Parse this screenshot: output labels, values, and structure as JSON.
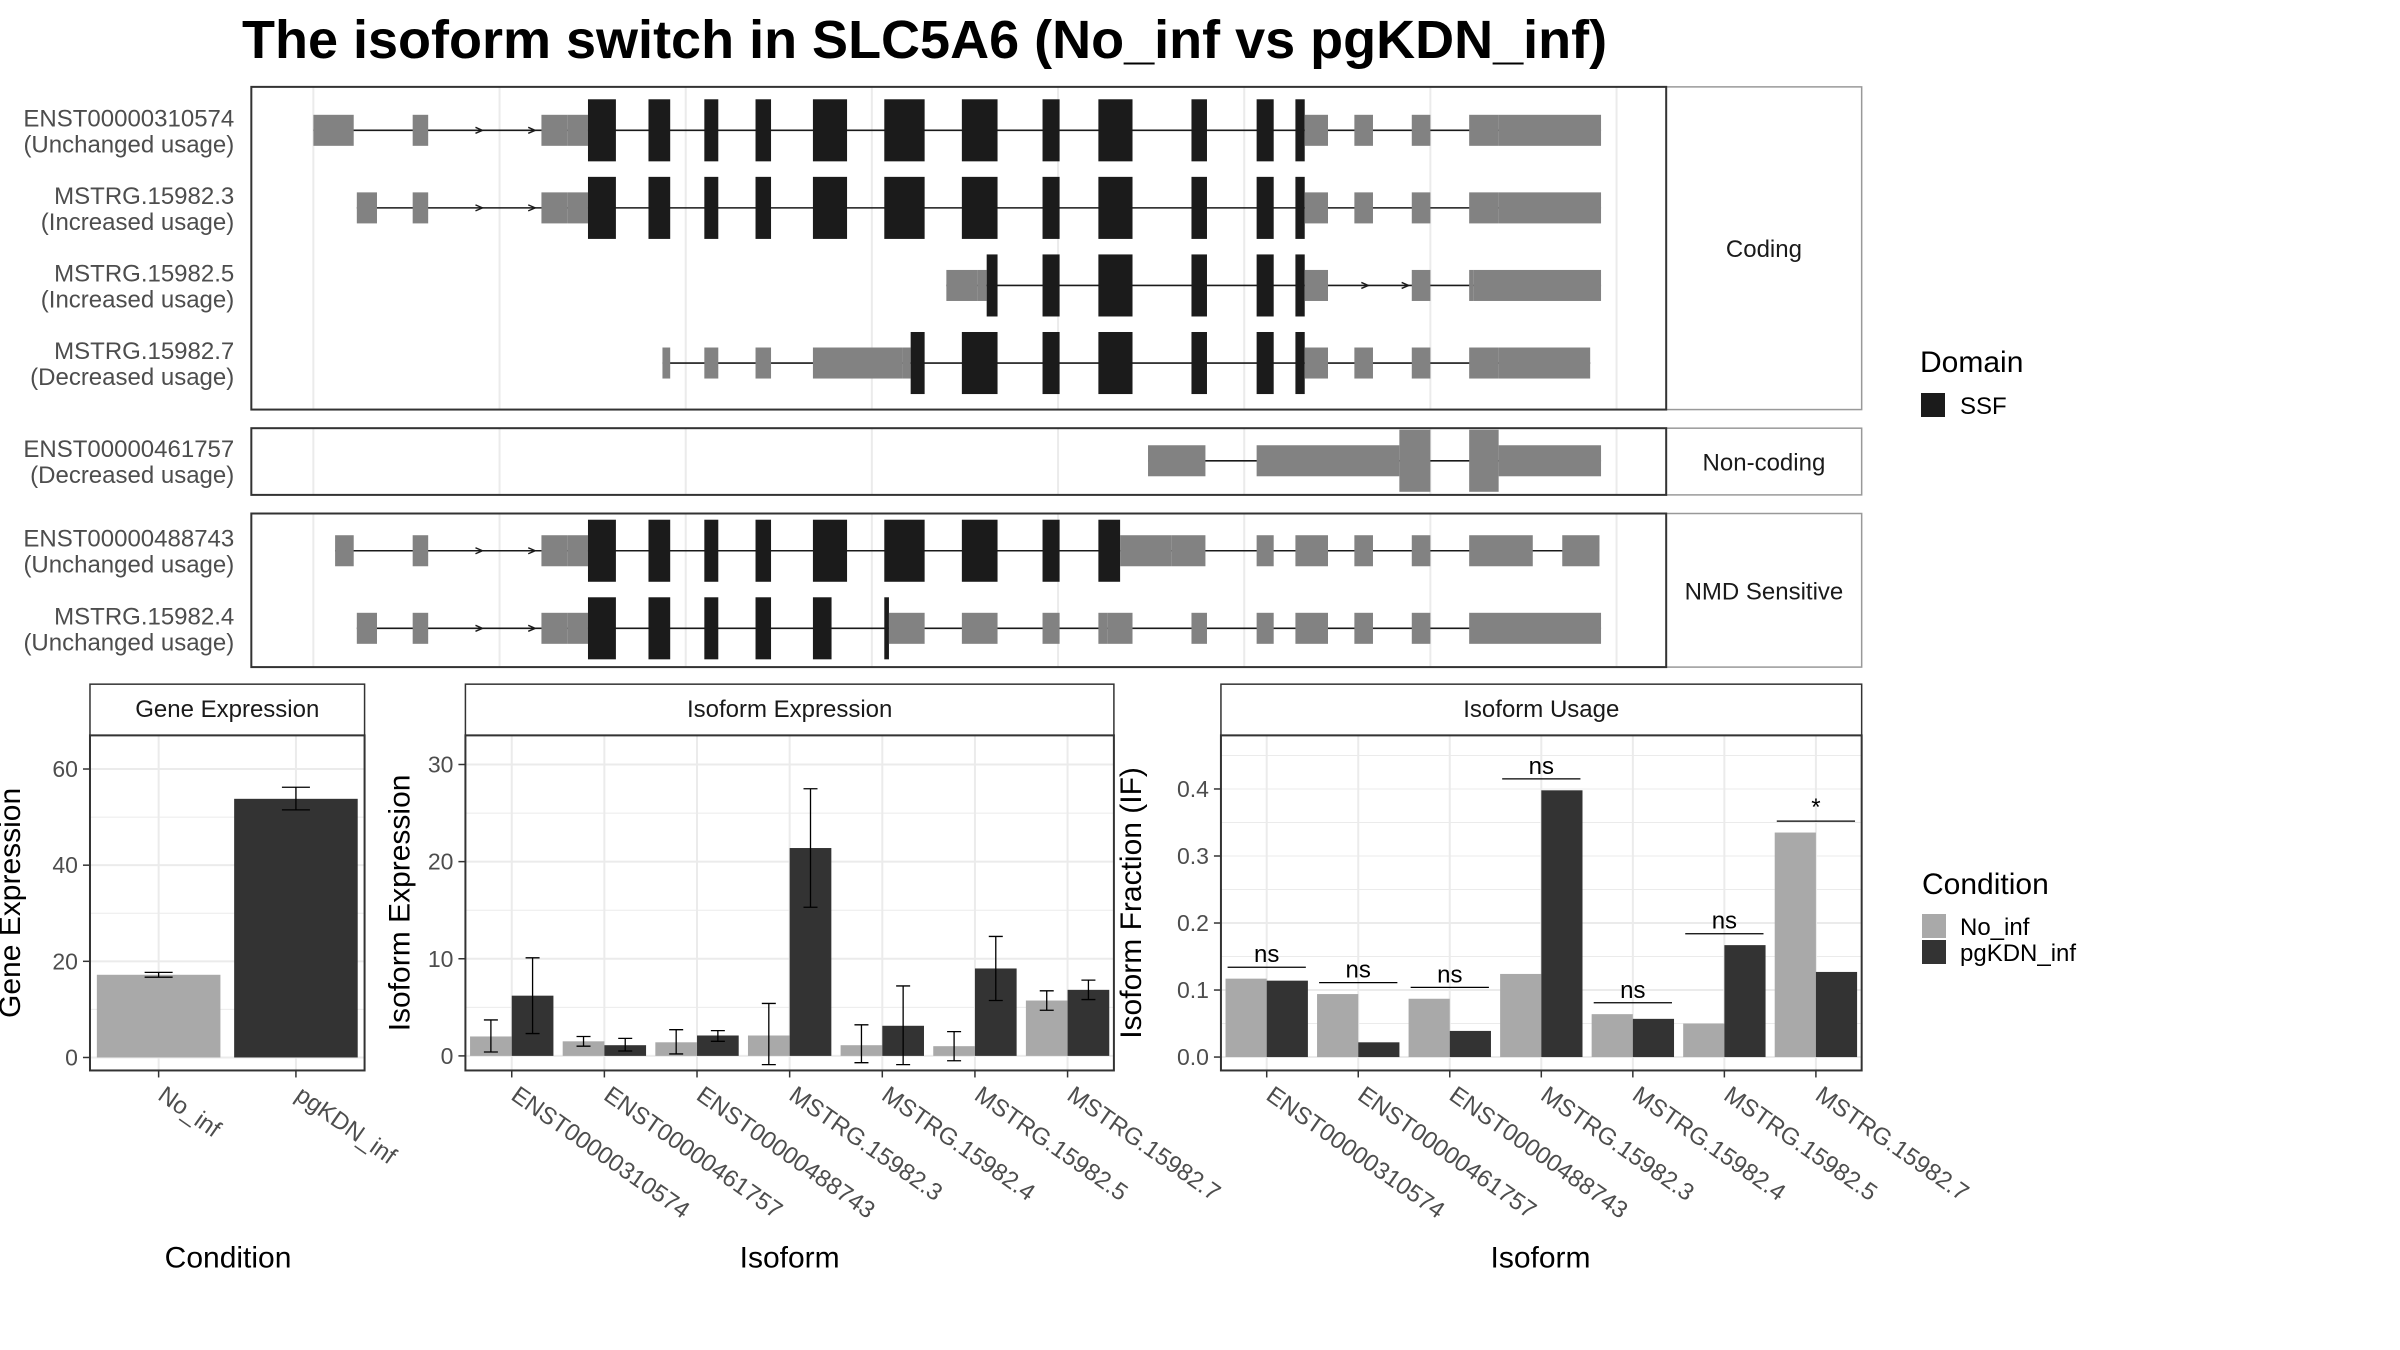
{
  "title": "The isoform switch in SLC5A6 (No_inf vs pgKDN_inf)",
  "colors": {
    "exon_noncoding": "#828282",
    "exon_domain": "#1b1b1b",
    "condition_a": "#a9a9a9",
    "condition_b": "#333333",
    "strip_bg": "#ffffff",
    "panel_border": "#333333",
    "grid": "#ebebeb"
  },
  "chart_data": [
    {
      "type": "gene-structure",
      "groups": [
        {
          "label": "Coding",
          "transcripts": [
            {
              "name": "ENST00000310574",
              "status": "(Unchanged usage)",
              "segments": [
                [
                  202,
                  228,
                  0
                ],
                [
                  266,
                  276,
                  0
                ],
                [
                  349,
                  366,
                  0
                ],
                [
                  366,
                  379,
                  0
                ],
                [
                  379,
                  397,
                  1
                ],
                [
                  418,
                  432,
                  1
                ],
                [
                  454,
                  463,
                  1
                ],
                [
                  487,
                  497,
                  1
                ],
                [
                  524,
                  546,
                  1
                ],
                [
                  570,
                  596,
                  1
                ],
                [
                  620,
                  643,
                  1
                ],
                [
                  672,
                  683,
                  1
                ],
                [
                  708,
                  730,
                  1
                ],
                [
                  768,
                  778,
                  1
                ],
                [
                  810,
                  821,
                  1
                ],
                [
                  835,
                  841,
                  1
                ],
                [
                  841,
                  856,
                  0
                ],
                [
                  873,
                  885,
                  0
                ],
                [
                  910,
                  922,
                  0
                ],
                [
                  947,
                  966,
                  0
                ],
                [
                  966,
                  1032,
                  0
                ]
              ],
              "arrows": [
                311,
                345
              ]
            },
            {
              "name": "MSTRG.15982.3",
              "status": "(Increased usage)",
              "segments": [
                [
                  230,
                  243,
                  0
                ],
                [
                  266,
                  276,
                  0
                ],
                [
                  349,
                  366,
                  0
                ],
                [
                  366,
                  379,
                  0
                ],
                [
                  379,
                  397,
                  1
                ],
                [
                  418,
                  432,
                  1
                ],
                [
                  454,
                  463,
                  1
                ],
                [
                  487,
                  497,
                  1
                ],
                [
                  524,
                  546,
                  1
                ],
                [
                  570,
                  596,
                  1
                ],
                [
                  620,
                  643,
                  1
                ],
                [
                  672,
                  683,
                  1
                ],
                [
                  708,
                  730,
                  1
                ],
                [
                  768,
                  778,
                  1
                ],
                [
                  810,
                  821,
                  1
                ],
                [
                  835,
                  841,
                  1
                ],
                [
                  841,
                  856,
                  0
                ],
                [
                  873,
                  885,
                  0
                ],
                [
                  910,
                  922,
                  0
                ],
                [
                  947,
                  966,
                  0
                ],
                [
                  966,
                  1032,
                  0
                ]
              ],
              "arrows": [
                311,
                345
              ]
            },
            {
              "name": "MSTRG.15982.5",
              "status": "(Increased usage)",
              "segments": [
                [
                  610,
                  630,
                  0
                ],
                [
                  630,
                  636,
                  0
                ],
                [
                  636,
                  643,
                  1
                ],
                [
                  672,
                  683,
                  1
                ],
                [
                  708,
                  730,
                  1
                ],
                [
                  768,
                  778,
                  1
                ],
                [
                  810,
                  821,
                  1
                ],
                [
                  835,
                  841,
                  1
                ],
                [
                  841,
                  856,
                  0
                ],
                [
                  910,
                  922,
                  0
                ],
                [
                  947,
                  950,
                  0
                ],
                [
                  950,
                  1032,
                  0
                ]
              ],
              "arrows": [
                882,
                908
              ]
            },
            {
              "name": "MSTRG.15982.7",
              "status": "(Decreased usage)",
              "segments": [
                [
                  427,
                  432,
                  0
                ],
                [
                  454,
                  463,
                  0
                ],
                [
                  487,
                  497,
                  0
                ],
                [
                  524,
                  582,
                  0
                ],
                [
                  582,
                  587,
                  0
                ],
                [
                  587,
                  596,
                  1
                ],
                [
                  620,
                  643,
                  1
                ],
                [
                  672,
                  683,
                  1
                ],
                [
                  708,
                  730,
                  1
                ],
                [
                  768,
                  778,
                  1
                ],
                [
                  810,
                  821,
                  1
                ],
                [
                  835,
                  841,
                  1
                ],
                [
                  841,
                  856,
                  0
                ],
                [
                  873,
                  885,
                  0
                ],
                [
                  910,
                  922,
                  0
                ],
                [
                  947,
                  966,
                  0
                ],
                [
                  966,
                  1025,
                  0
                ]
              ],
              "arrows": []
            }
          ]
        },
        {
          "label": "Non-coding",
          "transcripts": [
            {
              "name": "ENST00000461757",
              "status": "(Decreased usage)",
              "segments": [
                [
                  740,
                  777,
                  0
                ],
                [
                  810,
                  902,
                  0
                ],
                [
                  902,
                  922,
                  0
                ],
                [
                  947,
                  966,
                  0
                ],
                [
                  966,
                  1032,
                  0
                ]
              ],
              "arrows": []
            }
          ]
        },
        {
          "label": "NMD Sensitive",
          "transcripts": [
            {
              "name": "ENST00000488743",
              "status": "(Unchanged usage)",
              "segments": [
                [
                  216,
                  228,
                  0
                ],
                [
                  266,
                  276,
                  0
                ],
                [
                  349,
                  366,
                  0
                ],
                [
                  366,
                  379,
                  0
                ],
                [
                  379,
                  397,
                  1
                ],
                [
                  418,
                  432,
                  1
                ],
                [
                  454,
                  463,
                  1
                ],
                [
                  487,
                  497,
                  1
                ],
                [
                  524,
                  546,
                  1
                ],
                [
                  570,
                  596,
                  1
                ],
                [
                  620,
                  643,
                  1
                ],
                [
                  672,
                  683,
                  1
                ],
                [
                  708,
                  722,
                  1
                ],
                [
                  722,
                  755,
                  0
                ],
                [
                  755,
                  777,
                  0
                ],
                [
                  810,
                  821,
                  0
                ],
                [
                  835,
                  856,
                  0
                ],
                [
                  873,
                  885,
                  0
                ],
                [
                  910,
                  922,
                  0
                ],
                [
                  947,
                  988,
                  0
                ],
                [
                  1007,
                  1031,
                  0
                ]
              ],
              "arrows": [
                311,
                345
              ]
            },
            {
              "name": "MSTRG.15982.4",
              "status": "(Unchanged usage)",
              "segments": [
                [
                  230,
                  243,
                  0
                ],
                [
                  266,
                  276,
                  0
                ],
                [
                  349,
                  366,
                  0
                ],
                [
                  366,
                  379,
                  0
                ],
                [
                  379,
                  397,
                  1
                ],
                [
                  418,
                  432,
                  1
                ],
                [
                  454,
                  463,
                  1
                ],
                [
                  487,
                  497,
                  1
                ],
                [
                  524,
                  536,
                  1
                ],
                [
                  570,
                  573,
                  1
                ],
                [
                  573,
                  596,
                  0
                ],
                [
                  620,
                  643,
                  0
                ],
                [
                  672,
                  683,
                  0
                ],
                [
                  708,
                  714,
                  0
                ],
                [
                  714,
                  730,
                  0
                ],
                [
                  768,
                  778,
                  0
                ],
                [
                  810,
                  821,
                  0
                ],
                [
                  835,
                  856,
                  0
                ],
                [
                  873,
                  885,
                  0
                ],
                [
                  910,
                  922,
                  0
                ],
                [
                  947,
                  1032,
                  0
                ]
              ],
              "arrows": [
                311,
                345
              ]
            }
          ]
        }
      ],
      "legend": {
        "title": "Domain",
        "items": [
          "SSF"
        ]
      }
    },
    {
      "type": "bar",
      "panel_title": "Gene Expression",
      "xlabel": "Condition",
      "ylabel": "Gene Expression",
      "ylim": [
        -2.7,
        67
      ],
      "yticks": [
        0,
        20,
        40,
        60
      ],
      "categories": [
        "No_inf",
        "pgKDN_inf"
      ],
      "values": [
        17.2,
        53.8
      ],
      "errors": [
        [
          16.7,
          17.7
        ],
        [
          51.5,
          56.2
        ]
      ]
    },
    {
      "type": "bar",
      "panel_title": "Isoform Expression",
      "xlabel": "Isoform",
      "ylabel": "Isoform Expression",
      "ylim": [
        -1.5,
        33
      ],
      "yticks": [
        0,
        10,
        20,
        30
      ],
      "categories": [
        "ENST00000310574",
        "ENST00000461757",
        "ENST00000488743",
        "MSTRG.15982.3",
        "MSTRG.15982.4",
        "MSTRG.15982.5",
        "MSTRG.15982.7"
      ],
      "series": [
        {
          "name": "No_inf",
          "values": [
            2.0,
            1.5,
            1.4,
            2.1,
            1.1,
            1.0,
            5.7
          ],
          "errors": [
            [
              0.4,
              3.7
            ],
            [
              1.0,
              2.0
            ],
            [
              0.2,
              2.7
            ],
            [
              -0.9,
              5.4
            ],
            [
              -0.7,
              3.2
            ],
            [
              -0.5,
              2.5
            ],
            [
              4.7,
              6.7
            ]
          ]
        },
        {
          "name": "pgKDN_inf",
          "values": [
            6.2,
            1.1,
            2.1,
            21.4,
            3.1,
            9.0,
            6.8
          ],
          "errors": [
            [
              2.3,
              10.1
            ],
            [
              0.5,
              1.8
            ],
            [
              1.5,
              2.6
            ],
            [
              15.3,
              27.5
            ],
            [
              -0.9,
              7.2
            ],
            [
              5.7,
              12.3
            ],
            [
              5.8,
              7.8
            ]
          ]
        }
      ]
    },
    {
      "type": "bar",
      "panel_title": "Isoform Usage",
      "xlabel": "Isoform",
      "ylabel": "Isoform Fraction (IF)",
      "ylim": [
        -0.02,
        0.48
      ],
      "yticks": [
        0.0,
        0.1,
        0.2,
        0.3,
        0.4
      ],
      "categories": [
        "ENST00000310574",
        "ENST00000461757",
        "ENST00000488743",
        "MSTRG.15982.3",
        "MSTRG.15982.4",
        "MSTRG.15982.5",
        "MSTRG.15982.7"
      ],
      "series": [
        {
          "name": "No_inf",
          "values": [
            0.117,
            0.094,
            0.087,
            0.124,
            0.064,
            0.05,
            0.335
          ]
        },
        {
          "name": "pgKDN_inf",
          "values": [
            0.114,
            0.022,
            0.039,
            0.398,
            0.057,
            0.167,
            0.127
          ]
        }
      ],
      "annotations": [
        "ns",
        "ns",
        "ns",
        "ns",
        "ns",
        "ns",
        "*"
      ],
      "annotation_levels": [
        0.137,
        0.114,
        0.107,
        0.418,
        0.084,
        0.187,
        0.355
      ]
    }
  ],
  "condition_legend": {
    "title": "Condition",
    "items": [
      "No_inf",
      "pgKDN_inf"
    ]
  }
}
